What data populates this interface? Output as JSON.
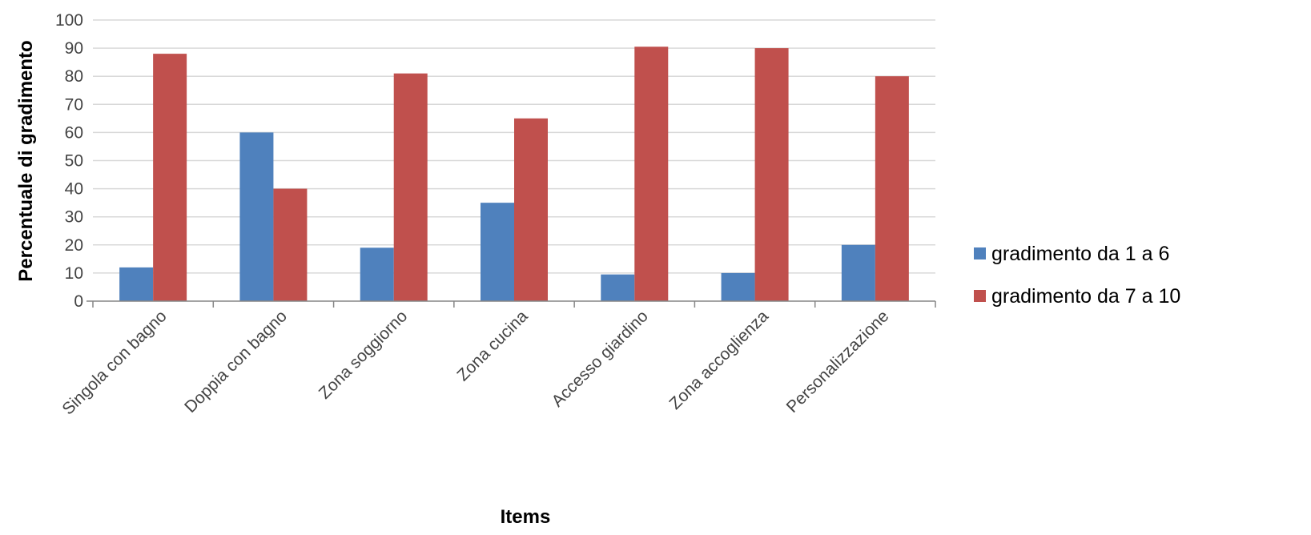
{
  "chart_data": {
    "type": "bar",
    "title": "",
    "xlabel": "Items",
    "ylabel": "Percentuale di gradimento",
    "categories": [
      "Singola con bagno",
      "Doppia con bagno",
      "Zona soggiorno",
      "Zona cucina",
      "Accesso giardino",
      "Zona accoglienza",
      "Personalizzazione"
    ],
    "series": [
      {
        "name": "gradimento da 1 a 6",
        "color": "#4f81bd",
        "values": [
          12,
          60,
          19,
          35,
          9.5,
          10,
          20
        ]
      },
      {
        "name": "gradimento da 7 a 10",
        "color": "#c0504d",
        "values": [
          88,
          40,
          81,
          65,
          90.5,
          90,
          80
        ]
      }
    ],
    "ylim": [
      0,
      100
    ],
    "yticks": [
      0,
      10,
      20,
      30,
      40,
      50,
      60,
      70,
      80,
      90,
      100
    ],
    "grid": true,
    "legend_position": "right"
  }
}
